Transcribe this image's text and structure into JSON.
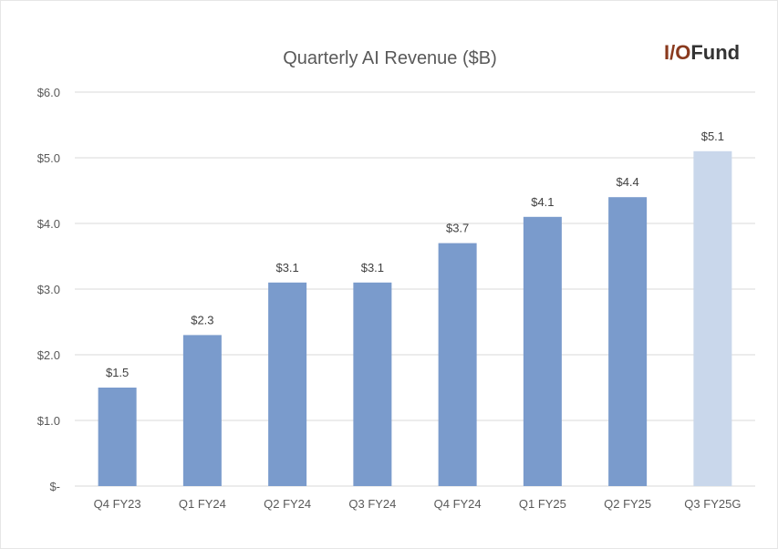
{
  "logo": {
    "part1": "I/O",
    "part2": "Fund"
  },
  "chart_data": {
    "type": "bar",
    "title": "Quarterly AI Revenue ($B)",
    "xlabel": "",
    "ylabel": "",
    "categories": [
      "Q4 FY23",
      "Q1 FY24",
      "Q2 FY24",
      "Q3 FY24",
      "Q4 FY24",
      "Q1 FY25",
      "Q2 FY25",
      "Q3 FY25G"
    ],
    "values": [
      1.5,
      2.3,
      3.1,
      3.1,
      3.7,
      4.1,
      4.4,
      5.1
    ],
    "data_labels": [
      "$1.5",
      "$2.3",
      "$3.1",
      "$3.1",
      "$3.7",
      "$4.1",
      "$4.4",
      "$5.1"
    ],
    "ylim": [
      0,
      6
    ],
    "yticks": [
      0,
      1,
      2,
      3,
      4,
      5,
      6
    ],
    "ytick_labels": [
      "$-",
      "$1.0",
      "$2.0",
      "$3.0",
      "$4.0",
      "$5.0",
      "$6.0"
    ],
    "grid": true,
    "bar_colors": [
      "#7a9bcc",
      "#7a9bcc",
      "#7a9bcc",
      "#7a9bcc",
      "#7a9bcc",
      "#7a9bcc",
      "#7a9bcc",
      "#c9d7eb"
    ],
    "gridline_color": "#d9d9d9"
  }
}
